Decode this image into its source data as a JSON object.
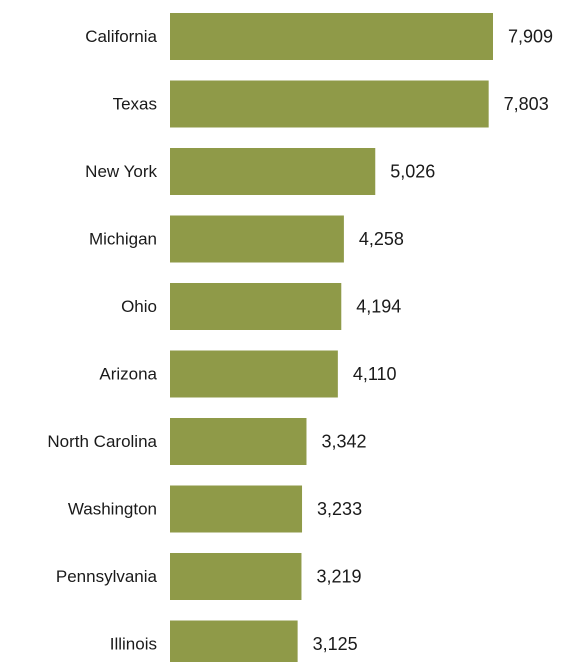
{
  "chart_data": {
    "type": "bar",
    "orientation": "horizontal",
    "title": "",
    "xlabel": "",
    "ylabel": "",
    "categories": [
      "California",
      "Texas",
      "New York",
      "Michigan",
      "Ohio",
      "Arizona",
      "North Carolina",
      "Washington",
      "Pennsylvania",
      "Illinois"
    ],
    "values": [
      7909,
      7803,
      5026,
      4258,
      4194,
      4110,
      3342,
      3233,
      3219,
      3125
    ],
    "value_labels": [
      "7,909",
      "7,803",
      "5,026",
      "4,258",
      "4,194",
      "4,110",
      "3,342",
      "3,233",
      "3,219",
      "3,125"
    ],
    "bar_color": "#8f9a48",
    "grid": false,
    "legend": "none"
  }
}
